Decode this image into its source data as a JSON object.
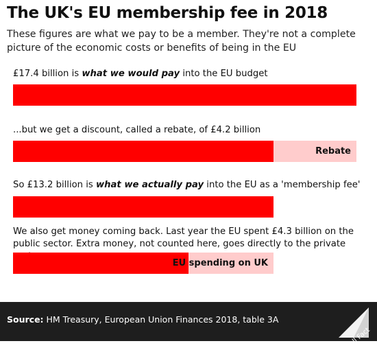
{
  "header": {
    "title": "The UK's EU membership fee in 2018",
    "subtitle": "These figures are what we pay to be a member. They're not a complete picture of the economic costs or benefits of being in the EU"
  },
  "rows": [
    {
      "text_before": "£17.4 billion is ",
      "text_emph": "what we would pay",
      "text_after": " into the EU budget"
    },
    {
      "text_before": "...but we get a discount, called a rebate, of £4.2 billion",
      "text_emph": "",
      "text_after": "",
      "segment_label": "Rebate"
    },
    {
      "text_before": "So £13.2 billion is ",
      "text_emph": "what we actually pay",
      "text_after": " into the EU as a 'membership fee'"
    },
    {
      "text_before": "We also get money coming back. Last year the EU spent £4.3 billion on the public sector. Extra money, not counted here, goes directly to the private sector.",
      "text_emph": "",
      "text_after": "",
      "segment_label": "EU spending on UK"
    }
  ],
  "chart_data": {
    "type": "bar",
    "unit": "£ billion",
    "max": 17.4,
    "bars": [
      {
        "value": 17.4
      },
      {
        "value": 13.2,
        "remainder": 4.2,
        "remainder_label": "Rebate"
      },
      {
        "value": 13.2
      },
      {
        "value": 8.9,
        "remainder": 4.3,
        "remainder_label": "EU spending on UK"
      }
    ]
  },
  "colors": {
    "main": "#ff0000",
    "light": "#ffcccc",
    "footer": "#1e1e1e"
  },
  "footer": {
    "source_key": "Source:",
    "source_text": " HM Treasury, European Union Finances 2018, table 3A",
    "brand": "Full Fact"
  }
}
